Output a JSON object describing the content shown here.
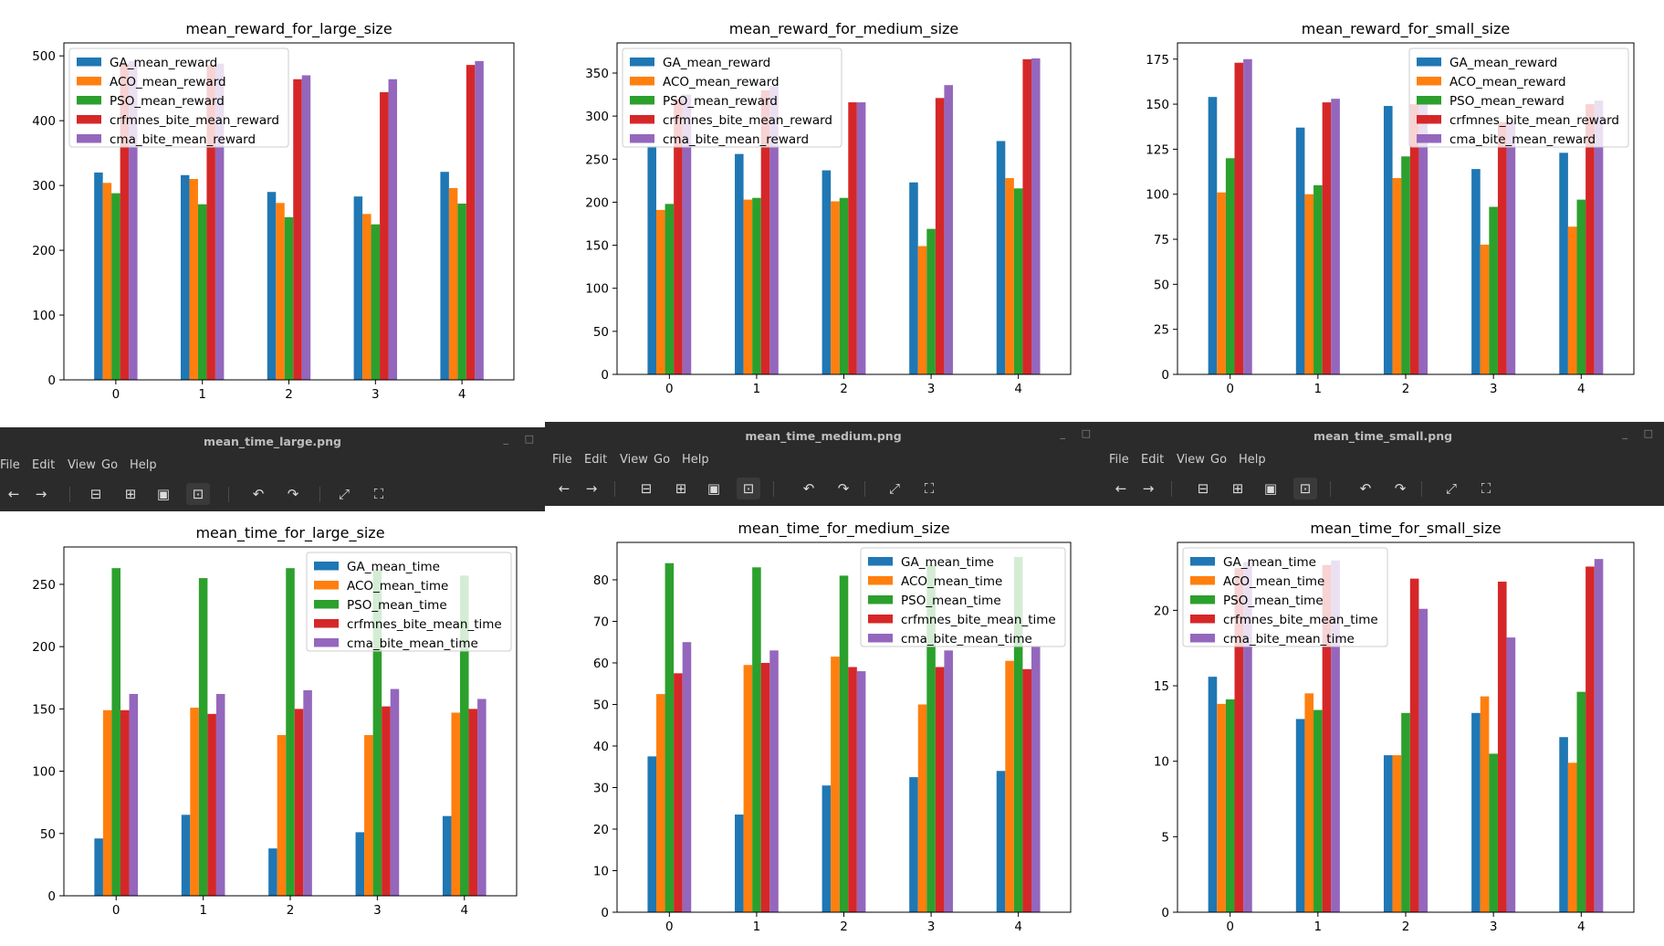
{
  "windows": [
    {
      "id": "reward-large",
      "title": "",
      "chart_data": {
        "type": "bar",
        "title": "mean_reward_for_large_size",
        "categories": [
          "0",
          "1",
          "2",
          "3",
          "4"
        ],
        "series": [
          {
            "name": "GA_mean_reward",
            "values": [
              320,
              316,
              290,
              283,
              321
            ]
          },
          {
            "name": "ACO_mean_reward",
            "values": [
              304,
              310,
              273,
              256,
              296
            ]
          },
          {
            "name": "PSO_mean_reward",
            "values": [
              288,
              271,
              251,
              240,
              272
            ]
          },
          {
            "name": "crfmnes_bite_mean_reward",
            "values": [
              488,
              486,
              464,
              444,
              486
            ]
          },
          {
            "name": "cma_bite_mean_reward",
            "values": [
              492,
              488,
              470,
              464,
              492
            ]
          }
        ],
        "ylim": [
          0,
          520
        ],
        "yticks": [
          0,
          100,
          200,
          300,
          400,
          500
        ],
        "legend": "top-left"
      }
    },
    {
      "id": "reward-medium",
      "title": "",
      "chart_data": {
        "type": "bar",
        "title": "mean_reward_for_medium_size",
        "categories": [
          "0",
          "1",
          "2",
          "3",
          "4"
        ],
        "series": [
          {
            "name": "GA_mean_reward",
            "values": [
              265,
              256,
              237,
              223,
              271
            ]
          },
          {
            "name": "ACO_mean_reward",
            "values": [
              191,
              203,
              201,
              149,
              228
            ]
          },
          {
            "name": "PSO_mean_reward",
            "values": [
              198,
              205,
              205,
              169,
              216
            ]
          },
          {
            "name": "crfmnes_bite_mean_reward",
            "values": [
              320,
              330,
              316,
              321,
              366
            ]
          },
          {
            "name": "cma_bite_mean_reward",
            "values": [
              325,
              335,
              316,
              336,
              367
            ]
          }
        ],
        "ylim": [
          0,
          385
        ],
        "yticks": [
          0,
          50,
          100,
          150,
          200,
          250,
          300,
          350
        ],
        "legend": "top-left"
      }
    },
    {
      "id": "reward-small",
      "title": "",
      "chart_data": {
        "type": "bar",
        "title": "mean_reward_for_small_size",
        "categories": [
          "0",
          "1",
          "2",
          "3",
          "4"
        ],
        "series": [
          {
            "name": "GA_mean_reward",
            "values": [
              154,
              137,
              149,
              114,
              123
            ]
          },
          {
            "name": "ACO_mean_reward",
            "values": [
              101,
              100,
              109,
              72,
              82
            ]
          },
          {
            "name": "PSO_mean_reward",
            "values": [
              120,
              105,
              121,
              93,
              97
            ]
          },
          {
            "name": "crfmnes_bite_mean_reward",
            "values": [
              173,
              151,
              150,
              140,
              150
            ]
          },
          {
            "name": "cma_bite_mean_reward",
            "values": [
              175,
              153,
              150,
              140,
              152
            ]
          }
        ],
        "ylim": [
          0,
          184
        ],
        "yticks": [
          0,
          25,
          50,
          75,
          100,
          125,
          150,
          175
        ],
        "legend": "top-right"
      }
    },
    {
      "id": "time-large",
      "title": "mean_time_large.png",
      "chart_data": {
        "type": "bar",
        "title": "mean_time_for_large_size",
        "categories": [
          "0",
          "1",
          "2",
          "3",
          "4"
        ],
        "series": [
          {
            "name": "GA_mean_time",
            "values": [
              46,
              65,
              38,
              51,
              64
            ]
          },
          {
            "name": "ACO_mean_time",
            "values": [
              149,
              151,
              129,
              129,
              147
            ]
          },
          {
            "name": "PSO_mean_time",
            "values": [
              263,
              255,
              263,
              262,
              257
            ]
          },
          {
            "name": "crfmnes_bite_mean_time",
            "values": [
              149,
              146,
              150,
              152,
              150
            ]
          },
          {
            "name": "cma_bite_mean_time",
            "values": [
              162,
              162,
              165,
              166,
              158
            ]
          }
        ],
        "ylim": [
          0,
          280
        ],
        "yticks": [
          0,
          50,
          100,
          150,
          200,
          250
        ],
        "legend": "top-right"
      }
    },
    {
      "id": "time-medium",
      "title": "mean_time_medium.png",
      "chart_data": {
        "type": "bar",
        "title": "mean_time_for_medium_size",
        "categories": [
          "0",
          "1",
          "2",
          "3",
          "4"
        ],
        "series": [
          {
            "name": "GA_mean_time",
            "values": [
              37.5,
              23.5,
              30.5,
              32.5,
              34
            ]
          },
          {
            "name": "ACO_mean_time",
            "values": [
              52.5,
              59.5,
              61.5,
              50,
              60.5
            ]
          },
          {
            "name": "PSO_mean_time",
            "values": [
              84,
              83,
              81,
              83.5,
              85.5
            ]
          },
          {
            "name": "crfmnes_bite_mean_time",
            "values": [
              57.5,
              60,
              59,
              59,
              58.5
            ]
          },
          {
            "name": "cma_bite_mean_time",
            "values": [
              65,
              63,
              58,
              63,
              64
            ]
          }
        ],
        "ylim": [
          0,
          89
        ],
        "yticks": [
          0,
          10,
          20,
          30,
          40,
          50,
          60,
          70,
          80
        ],
        "legend": "top-right"
      }
    },
    {
      "id": "time-small",
      "title": "mean_time_small.png",
      "chart_data": {
        "type": "bar",
        "title": "mean_time_for_small_size",
        "categories": [
          "0",
          "1",
          "2",
          "3",
          "4"
        ],
        "series": [
          {
            "name": "GA_mean_time",
            "values": [
              15.6,
              12.8,
              10.4,
              13.2,
              11.6
            ]
          },
          {
            "name": "ACO_mean_time",
            "values": [
              13.8,
              14.5,
              10.4,
              14.3,
              9.9
            ]
          },
          {
            "name": "PSO_mean_time",
            "values": [
              14.1,
              13.4,
              13.2,
              10.5,
              14.6
            ]
          },
          {
            "name": "crfmnes_bite_mean_time",
            "values": [
              22.8,
              23.0,
              22.1,
              21.9,
              22.9
            ]
          },
          {
            "name": "cma_bite_mean_time",
            "values": [
              23.2,
              23.3,
              20.1,
              18.2,
              23.4
            ]
          }
        ],
        "ylim": [
          0,
          24.5
        ],
        "yticks": [
          0,
          5,
          10,
          15,
          20
        ],
        "legend": "top-left"
      }
    }
  ],
  "menu": [
    "File",
    "Edit",
    "View",
    "Go",
    "Help"
  ],
  "toolbar_icons": [
    "back-icon",
    "forward-icon",
    "zoom-out-icon",
    "zoom-in-icon",
    "zoom-normal-icon",
    "zoom-fit-icon",
    "rotate-left-icon",
    "rotate-right-icon",
    "fullscreen-icon",
    "slideshow-icon"
  ],
  "colors": [
    "#1f77b4",
    "#ff7f0e",
    "#2ca02c",
    "#d62728",
    "#9467bd"
  ]
}
